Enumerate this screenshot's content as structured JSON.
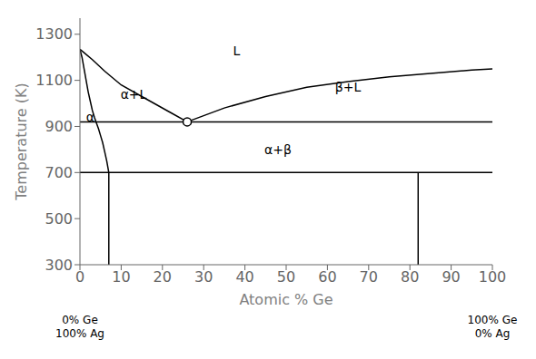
{
  "chart_data": {
    "type": "line",
    "xlabel": "Atomic % Ge",
    "ylabel": "Temperature (K)",
    "xlim": [
      0,
      100
    ],
    "ylim": [
      300,
      1370
    ],
    "xticks": [
      0,
      10,
      20,
      30,
      40,
      50,
      60,
      70,
      80,
      90,
      100
    ],
    "yticks": [
      300,
      500,
      700,
      900,
      1100,
      1300
    ],
    "grid": false,
    "series": [
      {
        "color": "#000000",
        "x": [
          0,
          1,
          3,
          6,
          10,
          16,
          22,
          26
        ],
        "values": [
          1235,
          1220,
          1190,
          1140,
          1080,
          1020,
          960,
          920
        ]
      },
      {
        "color": "#000000",
        "x": [
          0,
          0.5,
          1.0,
          1.5,
          2.0,
          2.5,
          3.0,
          3.5,
          4.0,
          4.5,
          5.0,
          5.5,
          6.0,
          6.5,
          7.0
        ],
        "values": [
          1235,
          1200,
          1150,
          1100,
          1050,
          1010,
          970,
          940,
          915,
          890,
          860,
          830,
          790,
          750,
          700
        ]
      },
      {
        "color": "#000000",
        "x": [
          7.0,
          7.0
        ],
        "values": [
          700,
          300
        ]
      },
      {
        "color": "#000000",
        "x": [
          26,
          35,
          45,
          55,
          65,
          75,
          85,
          95,
          100
        ],
        "values": [
          920,
          980,
          1030,
          1070,
          1095,
          1115,
          1130,
          1145,
          1150
        ]
      },
      {
        "color": "#000000",
        "x": [
          0,
          100
        ],
        "values": [
          920,
          920
        ]
      },
      {
        "color": "#000000",
        "x": [
          0,
          100
        ],
        "values": [
          700,
          700
        ]
      },
      {
        "color": "#000000",
        "x": [
          82,
          82
        ],
        "values": [
          300,
          700
        ]
      },
      {
        "color": "#000000",
        "type": "scatter",
        "marker": "circle",
        "x": [
          26
        ],
        "values": [
          920
        ]
      }
    ],
    "annotations": [
      {
        "text": "L",
        "x": 38,
        "y": 1230
      },
      {
        "text": "α+L",
        "x": 13,
        "y": 1040
      },
      {
        "text": "α",
        "x": 2.5,
        "y": 940
      },
      {
        "text": "β+L",
        "x": 65,
        "y": 1070
      },
      {
        "text": "α+β",
        "x": 48,
        "y": 800
      }
    ],
    "axis_end_labels": [
      {
        "text": "0% Ge\n100% Ag",
        "x": 0
      },
      {
        "text": "100% Ge\n0% Ag",
        "x": 100
      }
    ]
  }
}
